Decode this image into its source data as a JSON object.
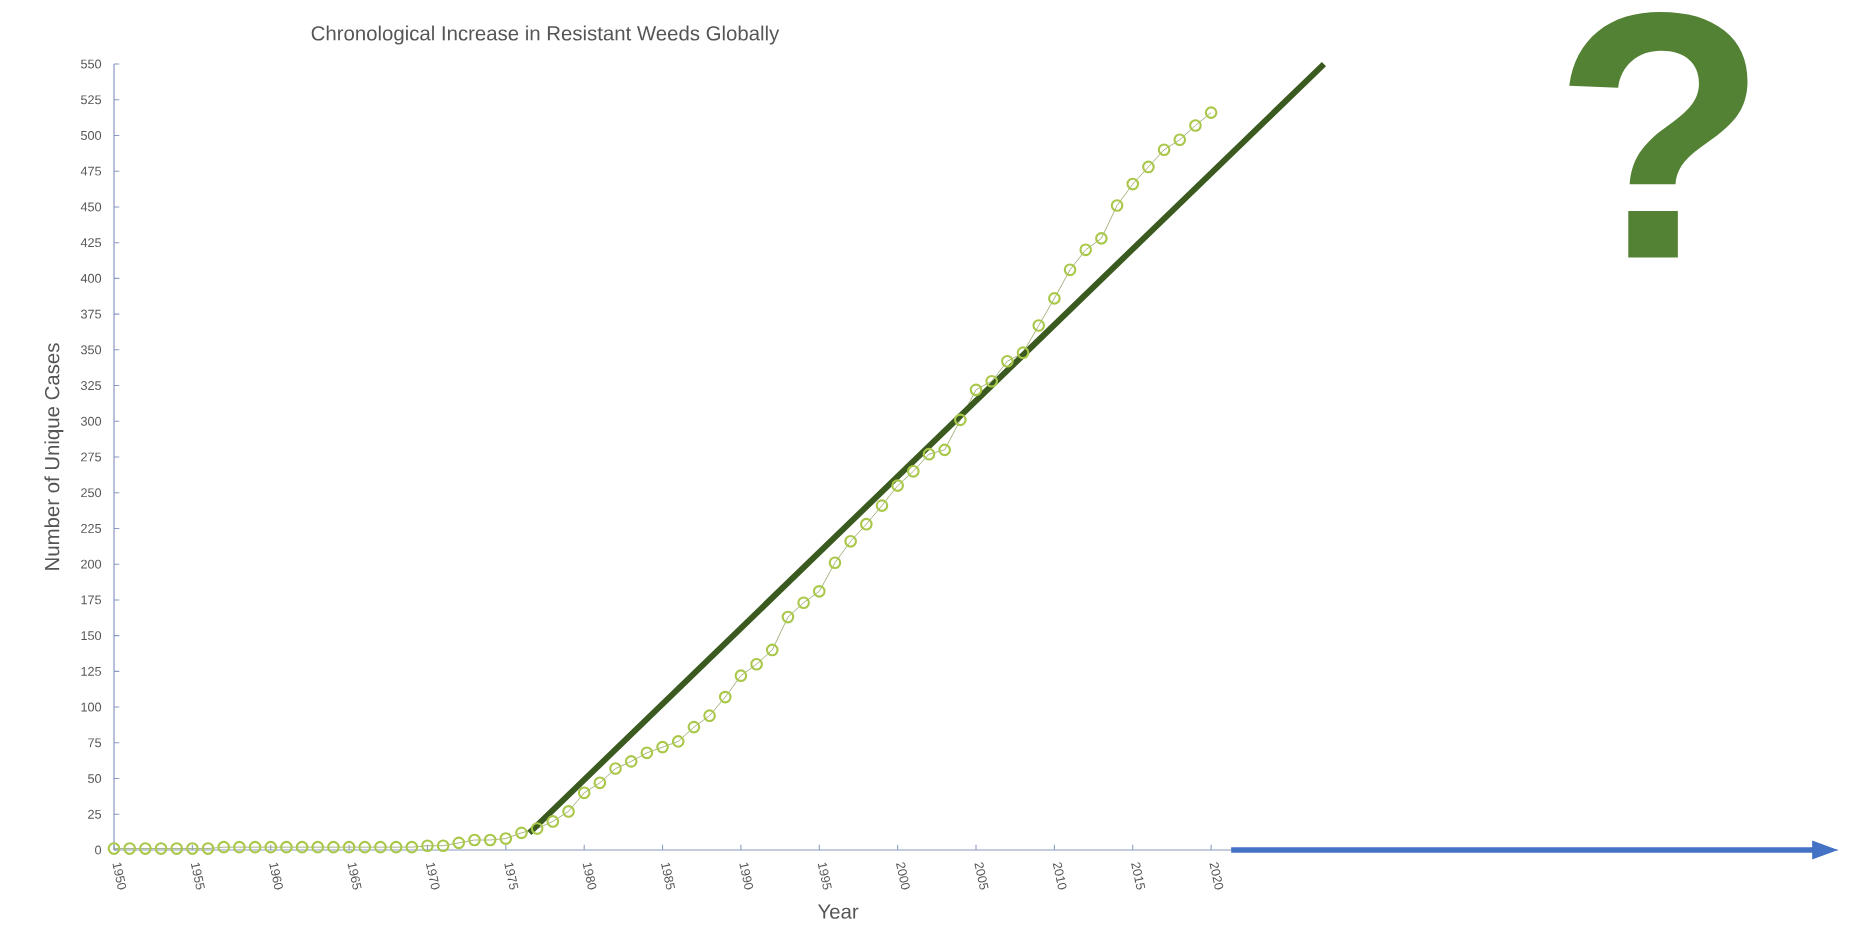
{
  "chart_data": {
    "type": "line",
    "title": "Chronological Increase in Resistant Weeds Globally",
    "xlabel": "Year",
    "ylabel": "Number of Unique Cases",
    "xlim": [
      1950,
      2060
    ],
    "xticks": [
      1950,
      1955,
      1960,
      1965,
      1970,
      1975,
      1980,
      1985,
      1990,
      1995,
      2000,
      2005,
      2010,
      2015,
      2020
    ],
    "ylim": [
      0,
      550
    ],
    "yticks": [
      0,
      25,
      50,
      75,
      100,
      125,
      150,
      175,
      200,
      225,
      250,
      275,
      300,
      325,
      350,
      375,
      400,
      425,
      450,
      475,
      500,
      525,
      550
    ],
    "marker": "circle",
    "annotations": [
      "?"
    ],
    "series": [
      {
        "color": "#a9c84a",
        "x": [
          1950,
          1951,
          1952,
          1953,
          1954,
          1955,
          1956,
          1957,
          1958,
          1959,
          1960,
          1961,
          1962,
          1963,
          1964,
          1965,
          1966,
          1967,
          1968,
          1969,
          1970,
          1971,
          1972,
          1973,
          1974,
          1975,
          1976,
          1977,
          1978,
          1979,
          1980,
          1981,
          1982,
          1983,
          1984,
          1985,
          1986,
          1987,
          1988,
          1989,
          1990,
          1991,
          1992,
          1993,
          1994,
          1995,
          1996,
          1997,
          1998,
          1999,
          2000,
          2001,
          2002,
          2003,
          2004,
          2005,
          2006,
          2007,
          2008,
          2009,
          2010,
          2011,
          2012,
          2013,
          2014,
          2015,
          2016,
          2017,
          2018,
          2019,
          2020
        ],
        "values": [
          1,
          1,
          1,
          1,
          1,
          1,
          1,
          2,
          2,
          2,
          2,
          2,
          2,
          2,
          2,
          2,
          2,
          2,
          2,
          2,
          3,
          3,
          5,
          7,
          7,
          8,
          12,
          15,
          20,
          27,
          40,
          47,
          57,
          62,
          68,
          72,
          76,
          86,
          94,
          107,
          122,
          130,
          140,
          163,
          173,
          181,
          201,
          216,
          228,
          241,
          255,
          265,
          277,
          280,
          301,
          322,
          328,
          342,
          348,
          367,
          386,
          406,
          420,
          428,
          451,
          466,
          478,
          490,
          497,
          507,
          516
        ]
      },
      {
        "type": "line",
        "marker": "none",
        "color": "#3b5a1f",
        "x": [
          1976.5,
          2027.2
        ],
        "values": [
          12,
          550
        ]
      }
    ]
  }
}
